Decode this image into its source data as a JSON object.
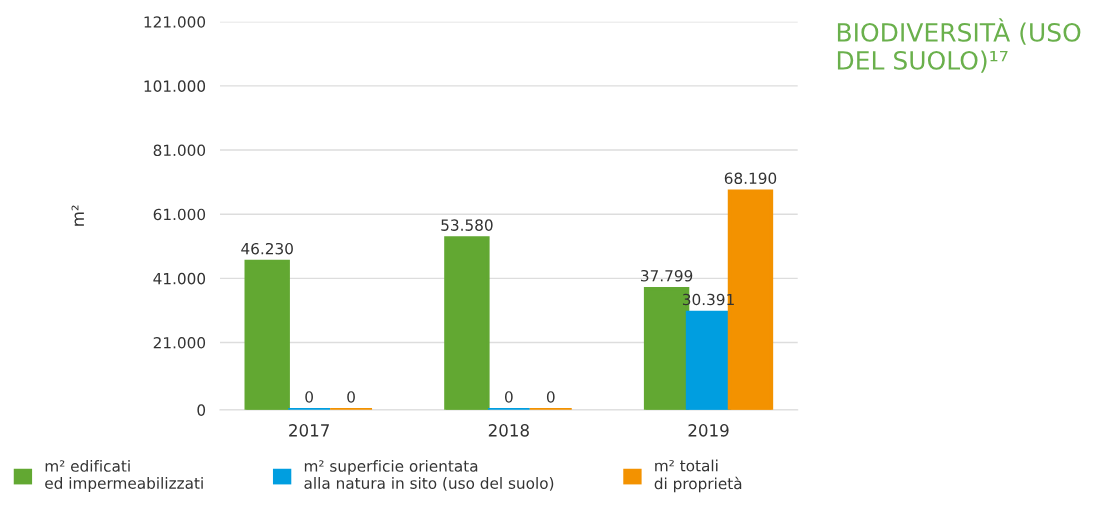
{
  "chart_data": {
    "type": "bar",
    "title": "BIODIVERSITÀ (USO DEL SUOLO)¹⁷",
    "ylabel": "m²",
    "categories": [
      "2017",
      "2018",
      "2019"
    ],
    "series": [
      {
        "name": "m² edificati\ned impermeabilizzati",
        "color": "#62a832",
        "values": [
          46230,
          53580,
          37799
        ],
        "value_labels": [
          "46.230",
          "53.580",
          "37.799"
        ]
      },
      {
        "name": "m² superficie orientata\nalla natura in sito (uso del suolo)",
        "color": "#009ee0",
        "values": [
          0,
          0,
          30391
        ],
        "value_labels": [
          "0",
          "0",
          "30.391"
        ]
      },
      {
        "name": "m² totali\ndi proprietà",
        "color": "#f39200",
        "values": [
          0,
          0,
          68190
        ],
        "value_labels": [
          "0",
          "0",
          "68.190"
        ]
      }
    ],
    "ylim": [
      0,
      121000
    ],
    "yticks": [
      {
        "value": 0,
        "label": "0"
      },
      {
        "value": 21000,
        "label": "21.000"
      },
      {
        "value": 41000,
        "label": "41.000"
      },
      {
        "value": 61000,
        "label": "61.000"
      },
      {
        "value": 81000,
        "label": "81.000"
      },
      {
        "value": 101000,
        "label": "101.000"
      },
      {
        "value": 121000,
        "label": "121.000"
      }
    ],
    "grid": "y",
    "legend": "bottom"
  }
}
